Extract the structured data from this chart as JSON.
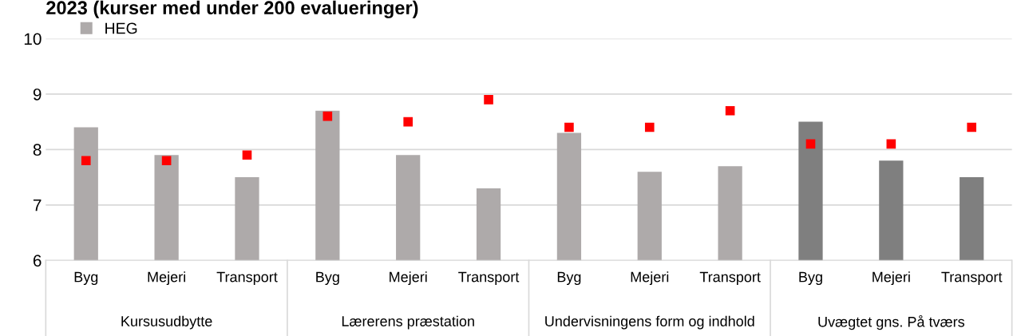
{
  "chart_data": {
    "type": "bar",
    "title": "2023 (kurser med under 200 evalueringer)",
    "categories": [
      "Byg",
      "Mejeri",
      "Transport",
      "Byg",
      "Mejeri",
      "Transport",
      "Byg",
      "Mejeri",
      "Transport",
      "Byg",
      "Mejeri",
      "Transport"
    ],
    "series": [
      {
        "name": "HEG",
        "colors": [
          "#aeaaaa",
          "#aeaaaa",
          "#aeaaaa",
          "#aeaaaa",
          "#aeaaaa",
          "#aeaaaa",
          "#aeaaaa",
          "#aeaaaa",
          "#aeaaaa",
          "#7f7f7f",
          "#7f7f7f",
          "#7f7f7f"
        ],
        "values": [
          8.4,
          7.9,
          7.5,
          8.7,
          7.9,
          7.3,
          8.3,
          7.6,
          7.7,
          8.5,
          7.8,
          7.5
        ]
      },
      {
        "type": "scatter",
        "color": "#ff0000",
        "marker": "square",
        "values": [
          7.8,
          7.8,
          7.9,
          8.6,
          8.5,
          8.9,
          8.4,
          8.4,
          8.7,
          8.1,
          8.1,
          8.4
        ]
      }
    ],
    "annotations": [
      "Kursusudbytte",
      "Lærerens præstation",
      "Undervisningens form og indhold",
      "Uvægtet gns. På tværs"
    ],
    "ylim": [
      6,
      10
    ],
    "yticks": [
      6,
      7,
      8,
      9,
      10
    ],
    "grid": "y",
    "legend": "top left"
  }
}
